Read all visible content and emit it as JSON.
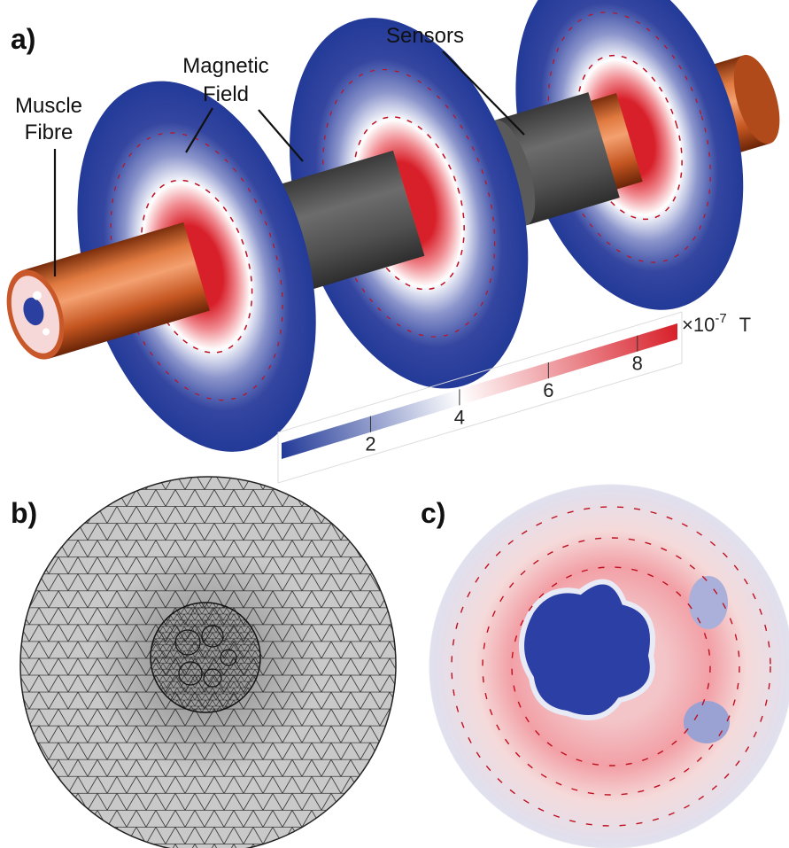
{
  "panel_labels": [
    "a)",
    "b)",
    "c)"
  ],
  "annotations": [
    {
      "lines": [
        "Muscle",
        "Fibre"
      ]
    },
    {
      "lines": [
        "Magnetic",
        "Field"
      ]
    },
    {
      "lines": [
        "Sensors"
      ]
    }
  ],
  "colorbar": {
    "range": [
      0,
      8.9
    ],
    "ticks": [
      2,
      4,
      6,
      8
    ],
    "multiplier": "×10",
    "exponent": "-7",
    "unit": "T"
  }
}
